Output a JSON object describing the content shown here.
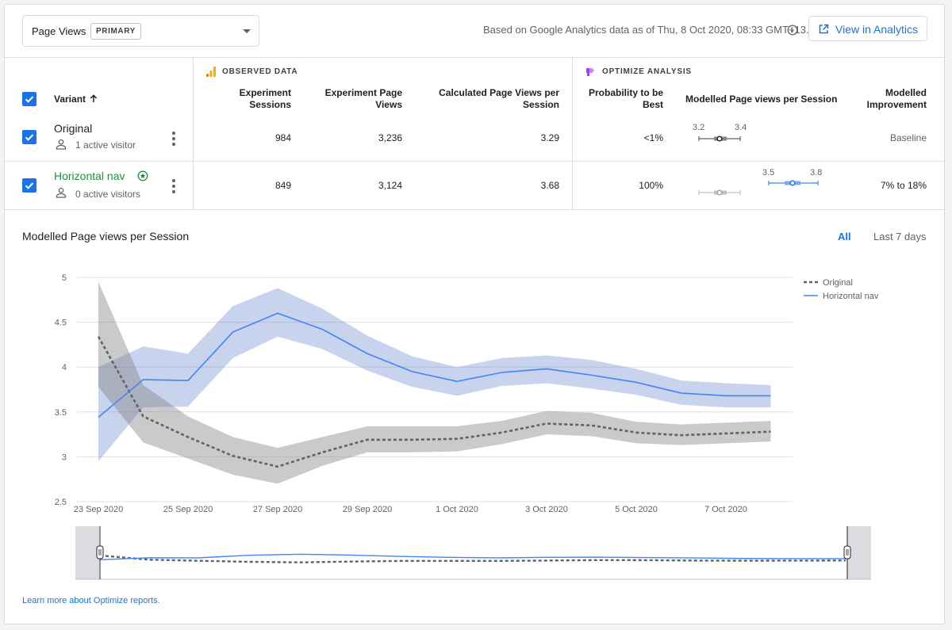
{
  "header": {
    "metric_label": "Page Views",
    "metric_badge": "PRIMARY",
    "data_note": "Based on Google Analytics data as of Thu, 8 Oct 2020, 08:33 GMT+13.",
    "view_button": "View in Analytics"
  },
  "table": {
    "observed_title": "OBSERVED DATA",
    "optimize_title": "OPTIMIZE ANALYSIS",
    "col_variant": "Variant",
    "col_sessions": [
      "Experiment",
      "Sessions"
    ],
    "col_pageviews": [
      "Experiment Page",
      "Views"
    ],
    "col_calc": [
      "Calculated Page Views per",
      "Session"
    ],
    "col_prob": [
      "Probability to be",
      "Best"
    ],
    "col_modelled": "Modelled Page views per Session",
    "col_improvement": [
      "Modelled",
      "Improvement"
    ],
    "rows": [
      {
        "name": "Original",
        "visitors": "1 active visitor",
        "sessions": "984",
        "page_views": "3,236",
        "calc": "3.29",
        "prob": "<1%",
        "ci_low": "3.2",
        "ci_high": "3.4",
        "improvement": "Baseline"
      },
      {
        "name": "Horizontal nav",
        "visitors": "0 active visitors",
        "sessions": "849",
        "page_views": "3,124",
        "calc": "3.68",
        "prob": "100%",
        "ci_low": "3.5",
        "ci_high": "3.8",
        "improvement": "7% to 18%"
      }
    ]
  },
  "chart": {
    "title": "Modelled Page views per Session",
    "range_all": "All",
    "range_7days": "Last 7 days"
  },
  "chart_data": {
    "type": "line",
    "x": [
      "23 Sep",
      "24 Sep",
      "25 Sep",
      "26 Sep",
      "27 Sep",
      "28 Sep",
      "29 Sep",
      "30 Sep",
      "1 Oct",
      "2 Oct",
      "3 Oct",
      "4 Oct",
      "5 Oct",
      "6 Oct",
      "7 Oct",
      "8 Oct"
    ],
    "x_tick_labels": [
      "23 Sep 2020",
      "25 Sep 2020",
      "27 Sep 2020",
      "29 Sep 2020",
      "1 Oct 2020",
      "3 Oct 2020",
      "5 Oct 2020",
      "7 Oct 2020"
    ],
    "y_ticks": [
      "5",
      "4.5",
      "4",
      "3.5",
      "3",
      "2.5"
    ],
    "ylim": [
      2.5,
      5
    ],
    "legend_position": "top-right",
    "series": [
      {
        "name": "Original",
        "color": "#5f6368",
        "style": "dashed",
        "values": [
          4.34,
          3.45,
          3.22,
          3.01,
          2.89,
          3.05,
          3.19,
          3.19,
          3.2,
          3.27,
          3.37,
          3.35,
          3.27,
          3.24,
          3.26,
          3.28
        ],
        "band_low": [
          3.78,
          3.16,
          2.98,
          2.8,
          2.7,
          2.9,
          3.05,
          3.05,
          3.06,
          3.14,
          3.25,
          3.23,
          3.15,
          3.13,
          3.15,
          3.17
        ],
        "band_high": [
          4.95,
          3.8,
          3.45,
          3.22,
          3.1,
          3.22,
          3.34,
          3.34,
          3.34,
          3.4,
          3.51,
          3.49,
          3.39,
          3.36,
          3.38,
          3.4
        ]
      },
      {
        "name": "Horizontal nav",
        "color": "#4285f4",
        "style": "solid",
        "values": [
          3.44,
          3.86,
          3.85,
          4.39,
          4.6,
          4.42,
          4.15,
          3.95,
          3.84,
          3.94,
          3.98,
          3.91,
          3.83,
          3.71,
          3.68,
          3.68
        ],
        "band_low": [
          2.95,
          3.55,
          3.56,
          4.1,
          4.34,
          4.2,
          3.96,
          3.78,
          3.68,
          3.79,
          3.82,
          3.76,
          3.69,
          3.58,
          3.55,
          3.55
        ],
        "band_high": [
          4.0,
          4.23,
          4.15,
          4.68,
          4.88,
          4.65,
          4.35,
          4.12,
          4.0,
          4.1,
          4.13,
          4.08,
          3.98,
          3.85,
          3.82,
          3.8
        ]
      }
    ]
  },
  "footer": {
    "learn_link": "Learn more about Optimize reports."
  }
}
